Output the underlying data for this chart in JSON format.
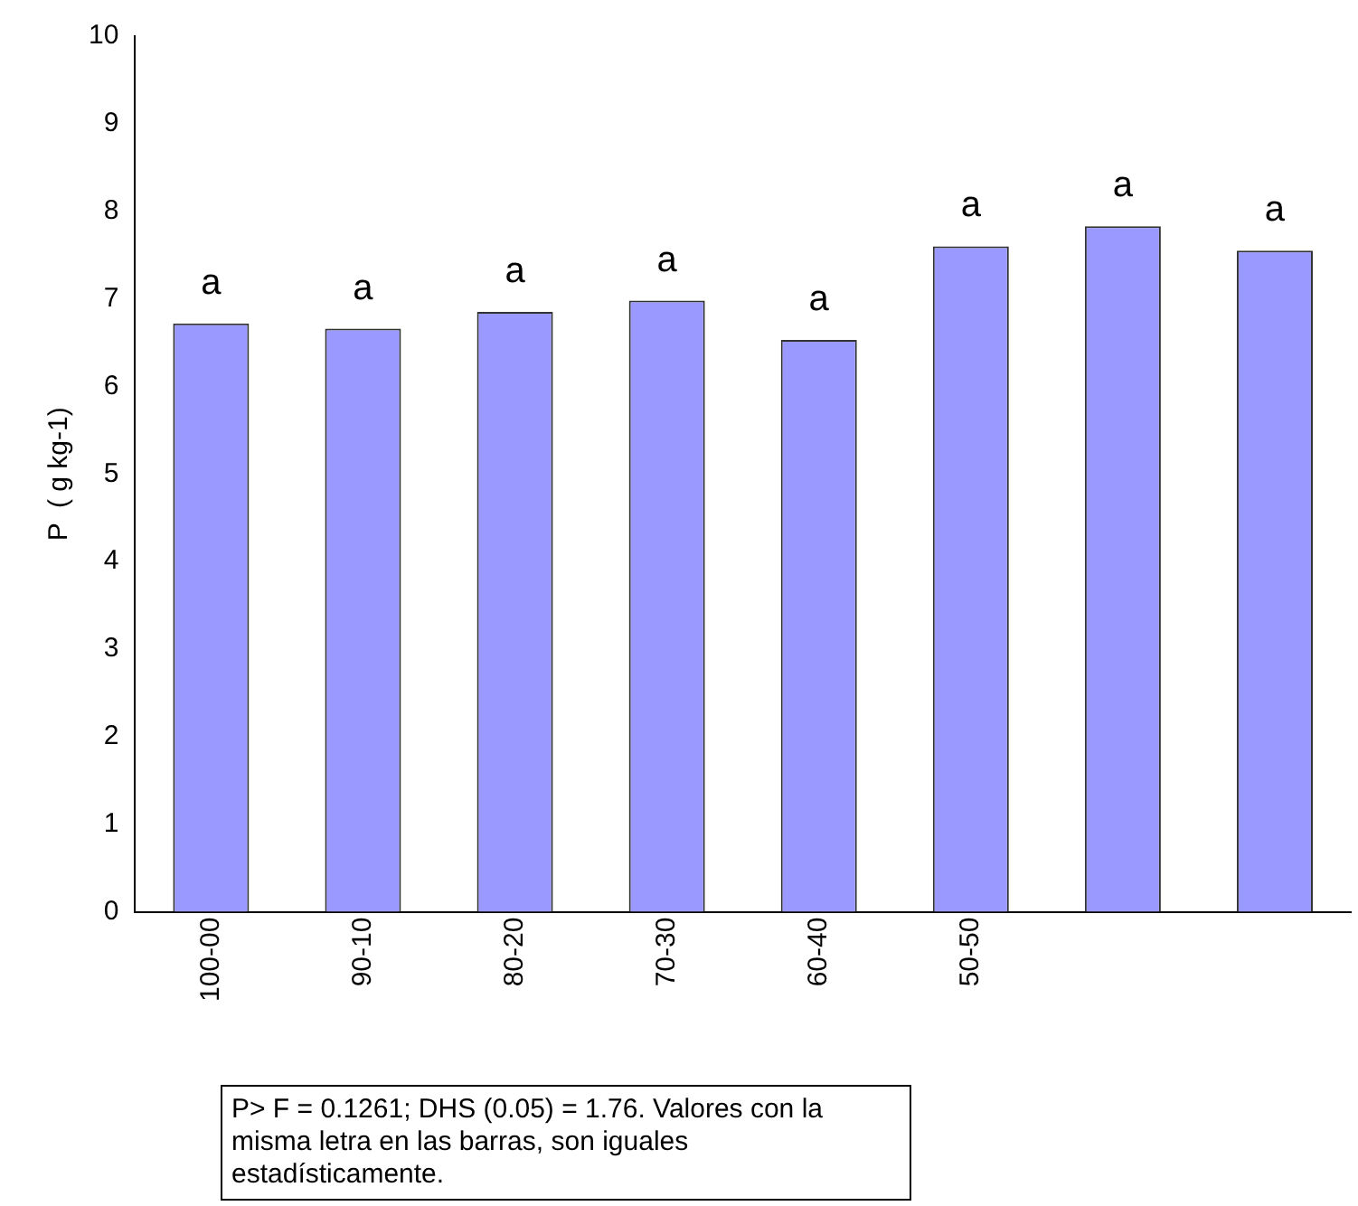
{
  "chart_data": {
    "type": "bar",
    "ylabel": "P  ( g kg-1)",
    "categories": [
      "100-00",
      "90-10",
      "80-20",
      "70-30",
      "60-40",
      "50-50",
      null,
      null
    ],
    "values": [
      6.72,
      6.66,
      6.85,
      6.98,
      6.53,
      7.6,
      7.83,
      7.55
    ],
    "value_labels": [
      "a",
      "a",
      "a",
      "a",
      "a",
      "a",
      "a",
      "a"
    ],
    "color": "#9999ff",
    "ylim": [
      0,
      10
    ],
    "yticks": [
      0,
      1,
      2,
      3,
      4,
      5,
      6,
      7,
      8,
      9,
      10
    ],
    "grid": false,
    "annotations": [
      "P> F = 0.1261; DHS (0.05) = 1.76. Valores con la misma letra en las barras, son iguales estadísticamente."
    ]
  }
}
